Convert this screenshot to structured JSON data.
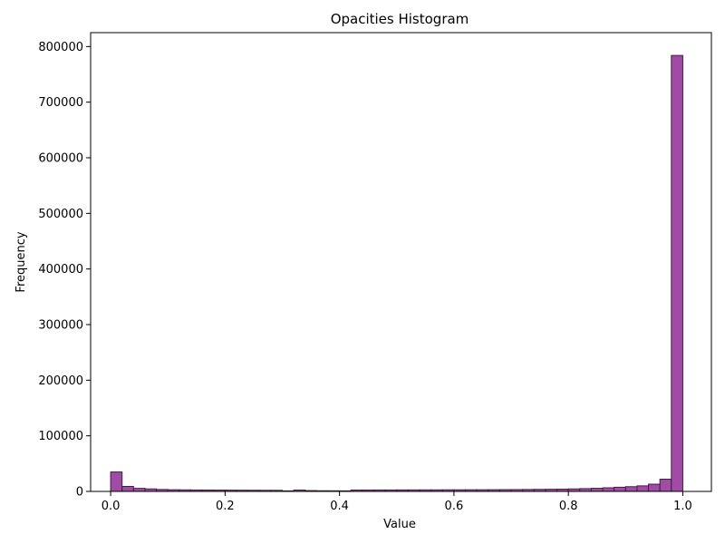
{
  "chart_data": {
    "type": "bar",
    "title": "Opacities Histogram",
    "xlabel": "Value",
    "ylabel": "Frequency",
    "xlim": [
      -0.035,
      1.05
    ],
    "ylim": [
      0,
      825000
    ],
    "xticks": [
      0.0,
      0.2,
      0.4,
      0.6,
      0.8,
      1.0
    ],
    "xtick_labels": [
      "0.0",
      "0.2",
      "0.4",
      "0.6",
      "0.8",
      "1.0"
    ],
    "yticks": [
      0,
      100000,
      200000,
      300000,
      400000,
      500000,
      600000,
      700000,
      800000
    ],
    "ytick_labels": [
      "0",
      "100000",
      "200000",
      "300000",
      "400000",
      "500000",
      "600000",
      "700000",
      "800000"
    ],
    "bins": {
      "start": 0.0,
      "end": 1.0,
      "count": 50
    },
    "values": [
      35000,
      9000,
      5500,
      4500,
      3500,
      3000,
      2800,
      2600,
      2500,
      2400,
      2300,
      2200,
      2100,
      2000,
      2000,
      1000,
      2500,
      1500,
      1200,
      1100,
      1000,
      2500,
      2500,
      2600,
      2600,
      2700,
      2700,
      2800,
      2800,
      2900,
      2900,
      3000,
      3000,
      3100,
      3200,
      3300,
      3500,
      3700,
      3900,
      4100,
      4500,
      5000,
      5600,
      6500,
      7500,
      8500,
      10000,
      13000,
      22000,
      784000
    ],
    "bar_color": "#a24ba6",
    "edge_color": "#3f2040",
    "grid": false,
    "legend": "none"
  }
}
